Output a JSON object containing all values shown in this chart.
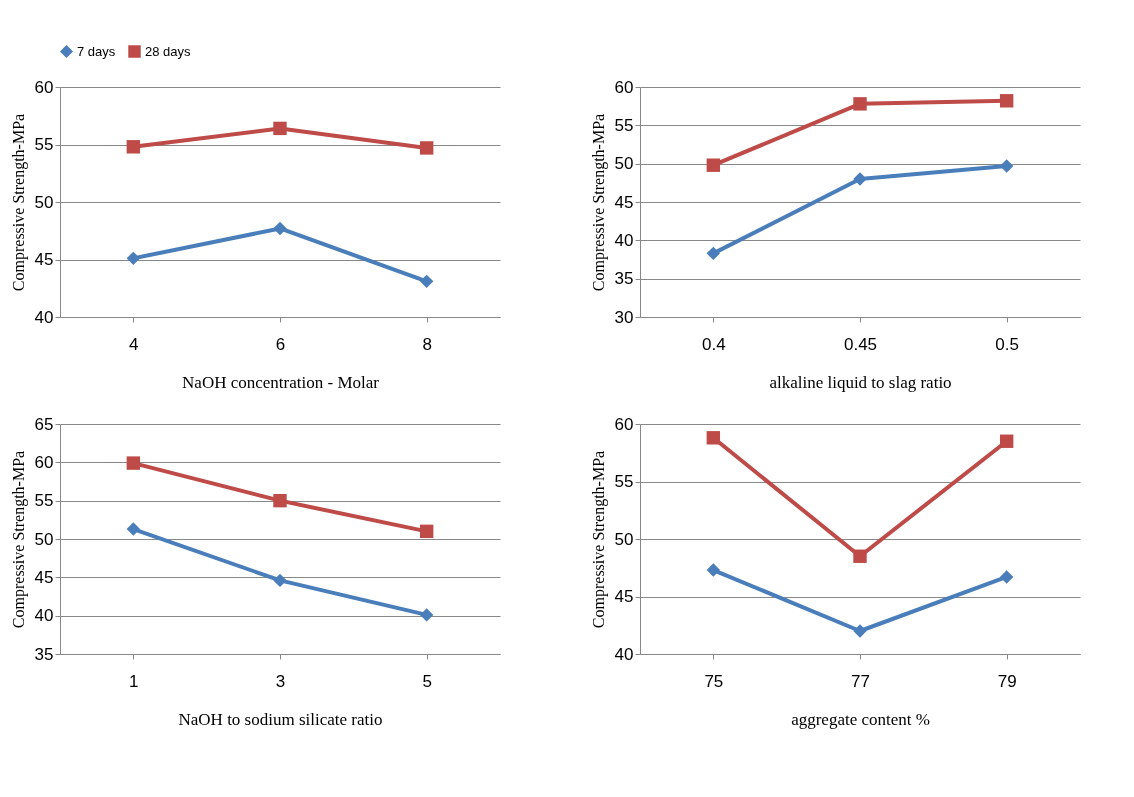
{
  "chart_data": [
    {
      "type": "line",
      "xlabel": "NaOH concentration - Molar",
      "ylabel": "Compressive Strength-MPa",
      "categories": [
        "4",
        "6",
        "8"
      ],
      "ylim": [
        40,
        60
      ],
      "yticks": [
        40,
        45,
        50,
        55,
        60
      ],
      "grid": "y",
      "legend": "top",
      "series": [
        {
          "name": "7 days",
          "color": "#4a7ebb",
          "marker": "diamond",
          "values": [
            45.1,
            47.7,
            43.1
          ]
        },
        {
          "name": "28 days",
          "color": "#be4b48",
          "marker": "square",
          "values": [
            54.8,
            56.4,
            54.7
          ]
        }
      ]
    },
    {
      "type": "line",
      "xlabel": "alkaline liquid to slag ratio",
      "ylabel": "Compressive Strength-MPa",
      "categories": [
        "0.4",
        "0.45",
        "0.5"
      ],
      "ylim": [
        30,
        60
      ],
      "yticks": [
        30,
        35,
        40,
        45,
        50,
        55,
        60
      ],
      "grid": "y",
      "series": [
        {
          "name": "7 days",
          "color": "#4a7ebb",
          "marker": "diamond",
          "values": [
            38.3,
            48,
            49.7
          ]
        },
        {
          "name": "28 days",
          "color": "#be4b48",
          "marker": "square",
          "values": [
            49.8,
            57.8,
            58.2
          ]
        }
      ]
    },
    {
      "type": "line",
      "xlabel": "NaOH to sodium silicate ratio",
      "ylabel": "Compressive Strength-MPa",
      "categories": [
        "1",
        "3",
        "5"
      ],
      "ylim": [
        35,
        65
      ],
      "yticks": [
        35,
        40,
        45,
        50,
        55,
        60,
        65
      ],
      "grid": "y",
      "series": [
        {
          "name": "7 days",
          "color": "#4a7ebb",
          "marker": "diamond",
          "values": [
            51.3,
            44.6,
            40.1
          ]
        },
        {
          "name": "28 days",
          "color": "#be4b48",
          "marker": "square",
          "values": [
            59.9,
            55,
            51
          ]
        }
      ]
    },
    {
      "type": "line",
      "xlabel": "aggregate content %",
      "ylabel": "Compressive Strength-MPa",
      "categories": [
        "75",
        "77",
        "79"
      ],
      "ylim": [
        40,
        60
      ],
      "yticks": [
        40,
        45,
        50,
        55,
        60
      ],
      "grid": "y",
      "series": [
        {
          "name": "7 days",
          "color": "#4a7ebb",
          "marker": "diamond",
          "values": [
            47.3,
            42,
            46.7
          ]
        },
        {
          "name": "28 days",
          "color": "#be4b48",
          "marker": "square",
          "values": [
            58.8,
            48.5,
            58.5
          ]
        }
      ]
    }
  ]
}
